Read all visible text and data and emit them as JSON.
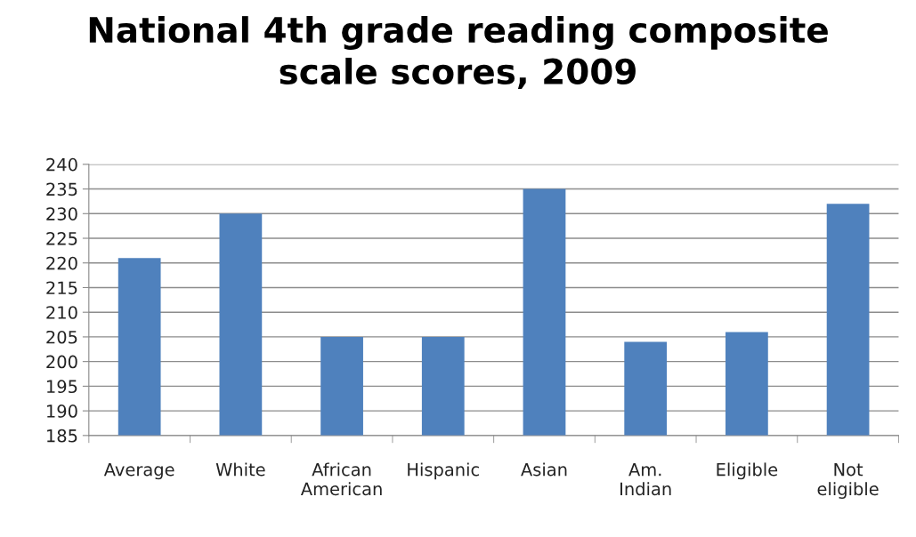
{
  "chart_data": {
    "type": "bar",
    "title": "National 4th grade reading composite\nscale scores, 2009",
    "categories": [
      "Average",
      "White",
      "African\nAmerican",
      "Hispanic",
      "Asian",
      "Am.\nIndian",
      "Eligible",
      "Not\neligible"
    ],
    "values": [
      221,
      230,
      205,
      205,
      235,
      204,
      206,
      232
    ],
    "color": "#4f81bd",
    "ylim": [
      185,
      240
    ],
    "yticks": [
      185,
      190,
      195,
      200,
      205,
      210,
      215,
      220,
      225,
      230,
      235,
      240
    ],
    "grid": "y",
    "legend": false
  }
}
